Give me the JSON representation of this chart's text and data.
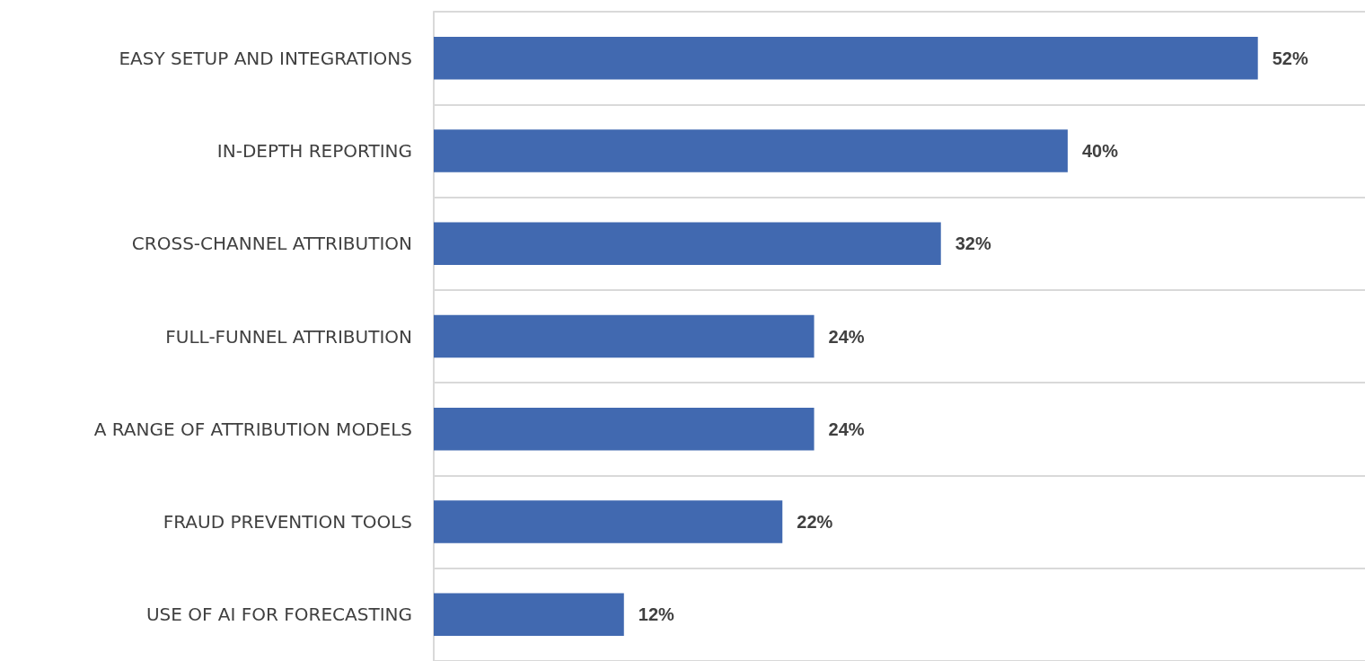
{
  "chart_data": {
    "type": "bar",
    "orientation": "horizontal",
    "categories": [
      "EASY SETUP AND INTEGRATIONS",
      "IN-DEPTH REPORTING",
      "CROSS-CHANNEL ATTRIBUTION",
      "FULL-FUNNEL ATTRIBUTION",
      "A RANGE OF ATTRIBUTION MODELS",
      "FRAUD PREVENTION TOOLS",
      "USE OF AI FOR FORECASTING"
    ],
    "values": [
      52,
      40,
      32,
      24,
      24,
      22,
      12
    ],
    "value_labels": [
      "52%",
      "40%",
      "32%",
      "24%",
      "24%",
      "22%",
      "12%"
    ],
    "color": "#4169b0",
    "grid": "y"
  }
}
